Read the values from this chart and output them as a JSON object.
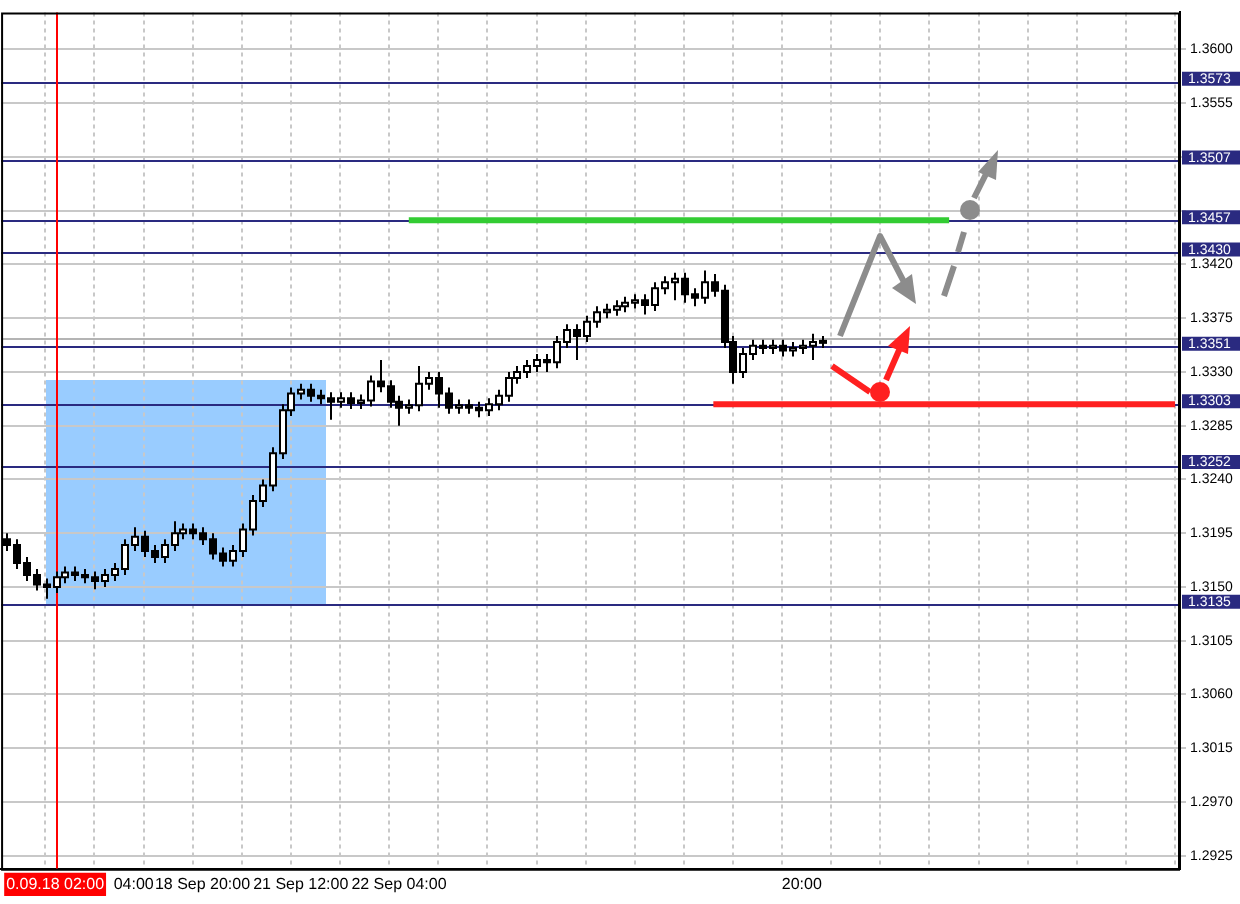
{
  "chart_data": {
    "type": "candlestick",
    "categories": [
      null,
      null,
      null,
      null,
      null,
      "0.09.18 02:00",
      null,
      null,
      null,
      null,
      null,
      null,
      null,
      "04:00",
      null,
      null,
      null,
      null,
      null,
      null,
      "18 Sep 20:00",
      null,
      null,
      null,
      null,
      null,
      null,
      null,
      null,
      null,
      "21 Sep 12:00",
      null,
      null,
      null,
      null,
      null,
      null,
      null,
      null,
      null,
      "22 Sep 04:00",
      null,
      null,
      null,
      null,
      null,
      null,
      null,
      null,
      null,
      null,
      null,
      null,
      null,
      null,
      null,
      null,
      null,
      null,
      null,
      null,
      null,
      null,
      null,
      null,
      null,
      null,
      null,
      null,
      null,
      null,
      null,
      null,
      null,
      null,
      null,
      null,
      null,
      null,
      null,
      null,
      "20:00",
      null,
      null,
      null,
      null,
      null,
      null,
      null,
      null,
      null,
      null,
      null,
      null,
      null,
      null,
      null,
      null,
      null,
      null,
      null,
      null,
      null,
      null,
      null,
      null,
      null,
      null,
      null,
      null,
      null,
      null,
      null,
      null,
      null,
      null,
      null,
      null,
      null,
      null
    ],
    "ohlc": [
      [
        1.319,
        1.3195,
        1.318,
        1.3185
      ],
      [
        1.3185,
        1.319,
        1.3165,
        1.317
      ],
      [
        1.317,
        1.3175,
        1.3155,
        1.316
      ],
      [
        1.316,
        1.3165,
        1.3147,
        1.3152
      ],
      [
        1.3152,
        1.3157,
        1.314,
        1.315
      ],
      [
        1.315,
        1.3163,
        1.3145,
        1.3158
      ],
      [
        1.3158,
        1.3167,
        1.3153,
        1.3162
      ],
      [
        1.3162,
        1.3167,
        1.3155,
        1.316
      ],
      [
        1.316,
        1.3165,
        1.3153,
        1.3158
      ],
      [
        1.3158,
        1.3163,
        1.3148,
        1.3155
      ],
      [
        1.3155,
        1.3165,
        1.315,
        1.316
      ],
      [
        1.316,
        1.317,
        1.3155,
        1.3165
      ],
      [
        1.3165,
        1.319,
        1.316,
        1.3185
      ],
      [
        1.3185,
        1.32,
        1.318,
        1.3192
      ],
      [
        1.3192,
        1.3197,
        1.3175,
        1.318
      ],
      [
        1.318,
        1.3185,
        1.317,
        1.3175
      ],
      [
        1.3175,
        1.319,
        1.317,
        1.3185
      ],
      [
        1.3185,
        1.3205,
        1.318,
        1.3195
      ],
      [
        1.3195,
        1.3203,
        1.319,
        1.3198
      ],
      [
        1.3198,
        1.3203,
        1.319,
        1.3195
      ],
      [
        1.3195,
        1.32,
        1.3185,
        1.319
      ],
      [
        1.319,
        1.3195,
        1.3173,
        1.3178
      ],
      [
        1.3178,
        1.3183,
        1.3167,
        1.3172
      ],
      [
        1.3172,
        1.3185,
        1.3167,
        1.318
      ],
      [
        1.318,
        1.3203,
        1.3175,
        1.3198
      ],
      [
        1.3198,
        1.3227,
        1.3193,
        1.3222
      ],
      [
        1.3222,
        1.324,
        1.3217,
        1.3235
      ],
      [
        1.3235,
        1.3267,
        1.323,
        1.3262
      ],
      [
        1.3262,
        1.3303,
        1.3257,
        1.3298
      ],
      [
        1.3298,
        1.3317,
        1.3293,
        1.3312
      ],
      [
        1.3312,
        1.332,
        1.3307,
        1.3315
      ],
      [
        1.3315,
        1.332,
        1.3305,
        1.331
      ],
      [
        1.331,
        1.3315,
        1.3303,
        1.3308
      ],
      [
        1.3308,
        1.3313,
        1.329,
        1.3305
      ],
      [
        1.3305,
        1.3313,
        1.33,
        1.3308
      ],
      [
        1.3308,
        1.3313,
        1.3299,
        1.3304
      ],
      [
        1.3304,
        1.3311,
        1.3299,
        1.3306
      ],
      [
        1.3306,
        1.3327,
        1.3301,
        1.3322
      ],
      [
        1.3322,
        1.334,
        1.3313,
        1.3318
      ],
      [
        1.3318,
        1.3323,
        1.33,
        1.3305
      ],
      [
        1.3305,
        1.331,
        1.3285,
        1.33
      ],
      [
        1.33,
        1.3307,
        1.3295,
        1.3302
      ],
      [
        1.3302,
        1.3335,
        1.3297,
        1.332
      ],
      [
        1.332,
        1.333,
        1.3315,
        1.3325
      ],
      [
        1.3325,
        1.333,
        1.33,
        1.3312
      ],
      [
        1.3312,
        1.3317,
        1.3295,
        1.33
      ],
      [
        1.33,
        1.3307,
        1.3295,
        1.3302
      ],
      [
        1.3302,
        1.3307,
        1.3295,
        1.33
      ],
      [
        1.33,
        1.3305,
        1.3292,
        1.3298
      ],
      [
        1.3298,
        1.3308,
        1.3293,
        1.3303
      ],
      [
        1.3303,
        1.3315,
        1.3298,
        1.331
      ],
      [
        1.331,
        1.333,
        1.3305,
        1.3325
      ],
      [
        1.3325,
        1.3335,
        1.332,
        1.333
      ],
      [
        1.333,
        1.334,
        1.3325,
        1.3335
      ],
      [
        1.3335,
        1.3345,
        1.333,
        1.334
      ],
      [
        1.334,
        1.3345,
        1.333,
        1.3338
      ],
      [
        1.3338,
        1.336,
        1.3333,
        1.3355
      ],
      [
        1.3355,
        1.337,
        1.335,
        1.3365
      ],
      [
        1.3365,
        1.337,
        1.334,
        1.336
      ],
      [
        1.336,
        1.3377,
        1.3355,
        1.3372
      ],
      [
        1.3372,
        1.3385,
        1.3367,
        1.338
      ],
      [
        1.338,
        1.3387,
        1.3375,
        1.3382
      ],
      [
        1.3382,
        1.339,
        1.3377,
        1.3385
      ],
      [
        1.3385,
        1.3393,
        1.338,
        1.3388
      ],
      [
        1.3388,
        1.3395,
        1.3383,
        1.339
      ],
      [
        1.339,
        1.3395,
        1.3378,
        1.3386
      ],
      [
        1.3386,
        1.3405,
        1.3381,
        1.34
      ],
      [
        1.34,
        1.341,
        1.3395,
        1.3405
      ],
      [
        1.3405,
        1.3413,
        1.339,
        1.3408
      ],
      [
        1.3408,
        1.3413,
        1.3388,
        1.3395
      ],
      [
        1.3395,
        1.34,
        1.3385,
        1.3392
      ],
      [
        1.3392,
        1.3415,
        1.3387,
        1.3405
      ],
      [
        1.3405,
        1.3412,
        1.3393,
        1.3398
      ],
      [
        1.3398,
        1.3403,
        1.335,
        1.3355
      ],
      [
        1.3355,
        1.336,
        1.332,
        1.333
      ],
      [
        1.333,
        1.335,
        1.3325,
        1.3345
      ],
      [
        1.3345,
        1.3357,
        1.334,
        1.3352
      ],
      [
        1.3352,
        1.3357,
        1.3345,
        1.335
      ],
      [
        1.335,
        1.3357,
        1.3345,
        1.3352
      ],
      [
        1.3352,
        1.3357,
        1.3343,
        1.3348
      ],
      [
        1.3348,
        1.3355,
        1.3343,
        1.335
      ],
      [
        1.335,
        1.3357,
        1.3345,
        1.3352
      ],
      [
        1.3352,
        1.3362,
        1.334,
        1.3355
      ],
      [
        1.3355,
        1.336,
        1.335,
        1.3356
      ],
      null,
      null,
      null,
      null,
      null,
      null,
      null,
      null,
      null,
      null,
      null,
      null,
      null,
      null,
      null,
      null,
      null,
      null,
      null,
      null,
      null,
      null,
      null,
      null,
      null,
      null,
      null,
      null,
      null,
      null,
      null,
      null,
      null,
      null,
      null,
      null
    ],
    "series": [
      {
        "type": "line",
        "color": "#33cc33",
        "values": [
          null,
          null,
          null,
          null,
          null,
          null,
          null,
          null,
          null,
          null,
          null,
          null,
          null,
          null,
          null,
          null,
          null,
          null,
          null,
          null,
          null,
          null,
          null,
          null,
          null,
          null,
          null,
          null,
          null,
          null,
          null,
          null,
          null,
          null,
          null,
          null,
          null,
          null,
          null,
          null,
          null,
          1.3457,
          1.3457,
          1.3457,
          1.3457,
          1.3457,
          1.3457,
          1.3457,
          1.3457,
          1.3457,
          1.3457,
          1.3457,
          1.3457,
          1.3457,
          1.3457,
          1.3457,
          1.3457,
          1.3457,
          1.3457,
          1.3457,
          1.3457,
          1.3457,
          1.3457,
          1.3457,
          1.3457,
          1.3457,
          1.3457,
          1.3457,
          1.3457,
          1.3457,
          1.3457,
          1.3457,
          1.3457,
          1.3457,
          1.3457,
          1.3457,
          1.3457,
          1.3457,
          1.3457,
          1.3457,
          1.3457,
          1.3457,
          1.3457,
          1.3457,
          1.3457,
          1.3457,
          1.3457,
          1.3457,
          1.3457,
          1.3457,
          1.3457,
          1.3457,
          1.3457,
          1.3457,
          1.3457,
          1.3457,
          1.3457,
          null,
          null,
          null,
          null,
          null,
          null,
          null,
          null,
          null,
          null,
          null,
          null,
          null,
          null,
          null,
          null,
          null,
          null,
          null,
          null,
          null,
          null,
          null
        ]
      },
      {
        "type": "line",
        "color": "#ff2020",
        "values": [
          null,
          null,
          null,
          null,
          null,
          null,
          null,
          null,
          null,
          null,
          null,
          null,
          null,
          null,
          null,
          null,
          null,
          null,
          null,
          null,
          null,
          null,
          null,
          null,
          null,
          null,
          null,
          null,
          null,
          null,
          null,
          null,
          null,
          null,
          null,
          null,
          null,
          null,
          null,
          null,
          null,
          null,
          null,
          null,
          null,
          null,
          null,
          null,
          null,
          null,
          null,
          null,
          null,
          null,
          null,
          null,
          null,
          null,
          null,
          null,
          null,
          null,
          null,
          null,
          null,
          null,
          null,
          null,
          null,
          null,
          null,
          null,
          1.3303,
          1.3303,
          1.3303,
          1.3303,
          1.3303,
          1.3303,
          1.3303,
          1.3303,
          1.3303,
          1.3303,
          1.3303,
          1.3303,
          1.3303,
          1.3303,
          1.3303,
          1.3303,
          1.3303,
          1.3303,
          1.3303,
          1.3303,
          1.3303,
          1.3303,
          1.3303,
          1.3303,
          1.3303,
          1.3303,
          1.3303,
          1.3303,
          1.3303,
          1.3303,
          1.3303,
          1.3303,
          1.3303,
          1.3303,
          1.3303,
          1.3303,
          1.3303,
          1.3303,
          1.3303,
          1.3303,
          1.3303,
          1.3303,
          1.3303,
          1.3303,
          1.3303,
          1.3303,
          1.3303,
          1.3303
        ]
      }
    ],
    "ylim": [
      1.2914,
      1.3631
    ],
    "yticks": [
      {
        "value": 1.36,
        "label": "1.3600"
      },
      1.3555,
      {
        "value": 1.351,
        "label": null
      },
      {
        "value": 1.3465,
        "label": null
      },
      {
        "value": 1.342,
        "label": "1.3420"
      },
      1.3375,
      {
        "value": 1.333,
        "label": "1.3330"
      },
      1.3285,
      {
        "value": 1.324,
        "label": "1.3240"
      },
      1.3195,
      {
        "value": 1.315,
        "label": "1.3150"
      },
      1.3105,
      {
        "value": 1.306,
        "label": "1.3060"
      },
      1.3015,
      {
        "value": 1.297,
        "label": "1.2970"
      },
      1.2925
    ],
    "ref_lines": [
      {
        "axis": "y",
        "value": 1.3573,
        "label": "1.3573",
        "color": "#2a2a80"
      },
      {
        "axis": "y",
        "value": 1.3507,
        "label": "1.3507",
        "color": "#2a2a80"
      },
      {
        "axis": "y",
        "value": 1.3457,
        "label": "1.3457",
        "color": "#2a2a80"
      },
      {
        "axis": "y",
        "value": 1.343,
        "label": "1.3430",
        "color": "#2a2a80"
      },
      {
        "axis": "y",
        "value": 1.3351,
        "label": "1.3351",
        "color": "#2a2a80"
      },
      {
        "axis": "y",
        "value": 1.3303,
        "label": "1.3303",
        "color": "#2a2a80"
      },
      {
        "axis": "y",
        "value": 1.3252,
        "label": "1.3252",
        "color": "#2a2a80"
      },
      {
        "axis": "y",
        "value": 1.3135,
        "label": "1.3135",
        "color": "#2a2a80"
      },
      {
        "axis": "y",
        "value": 1.3358,
        "color": "#b4b4b4"
      },
      {
        "axis": "x",
        "value": "0.09.18 02:00",
        "color": "#ff0000"
      }
    ],
    "grid": true
  }
}
